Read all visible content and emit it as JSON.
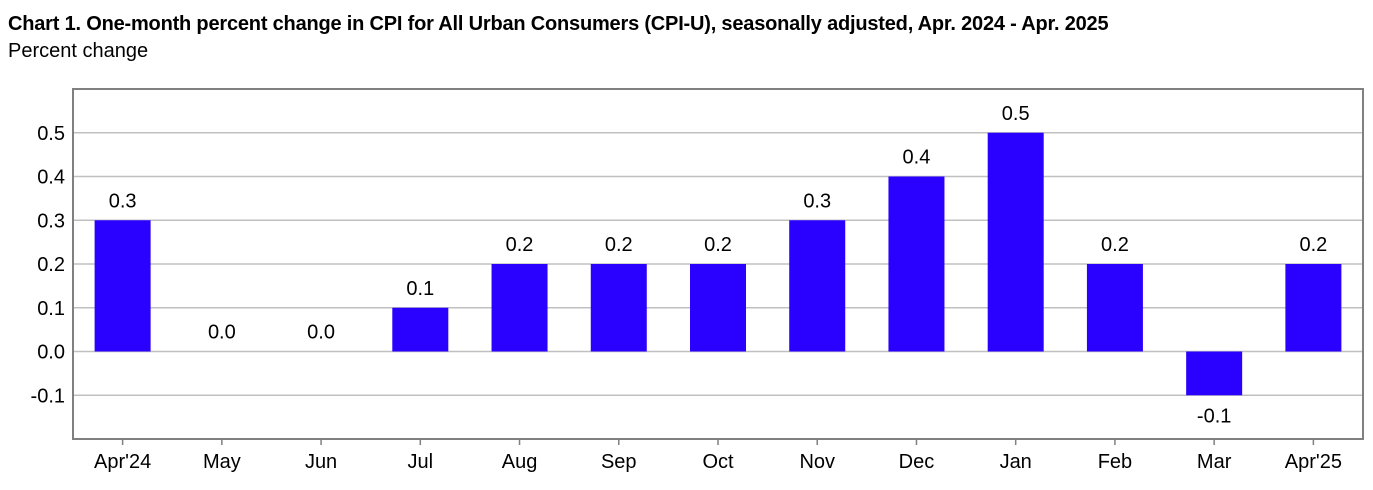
{
  "chart_data": {
    "type": "bar",
    "title": "Chart 1. One-month percent change in CPI for All Urban Consumers (CPI-U), seasonally adjusted, Apr. 2024 - Apr. 2025",
    "subtitle": "Percent change",
    "xlabel": "",
    "ylabel": "",
    "categories": [
      "Apr'24",
      "May",
      "Jun",
      "Jul",
      "Aug",
      "Sep",
      "Oct",
      "Nov",
      "Dec",
      "Jan",
      "Feb",
      "Mar",
      "Apr'25"
    ],
    "values": [
      0.3,
      0.0,
      0.0,
      0.1,
      0.2,
      0.2,
      0.2,
      0.3,
      0.4,
      0.5,
      0.2,
      -0.1,
      0.2
    ],
    "data_labels": [
      "0.3",
      "0.0",
      "0.0",
      "0.1",
      "0.2",
      "0.2",
      "0.2",
      "0.3",
      "0.4",
      "0.5",
      "0.2",
      "-0.1",
      "0.2"
    ],
    "ylim": [
      -0.2,
      0.6
    ],
    "yticks": [
      -0.1,
      0.0,
      0.1,
      0.2,
      0.3,
      0.4,
      0.5
    ],
    "ytick_labels": [
      "-0.1",
      "0.0",
      "0.1",
      "0.2",
      "0.3",
      "0.4",
      "0.5"
    ],
    "grid": true,
    "legend": "none",
    "colors": {
      "bar": "#2a00ff",
      "grid": "#c0c0c0",
      "frame": "#808080"
    }
  }
}
